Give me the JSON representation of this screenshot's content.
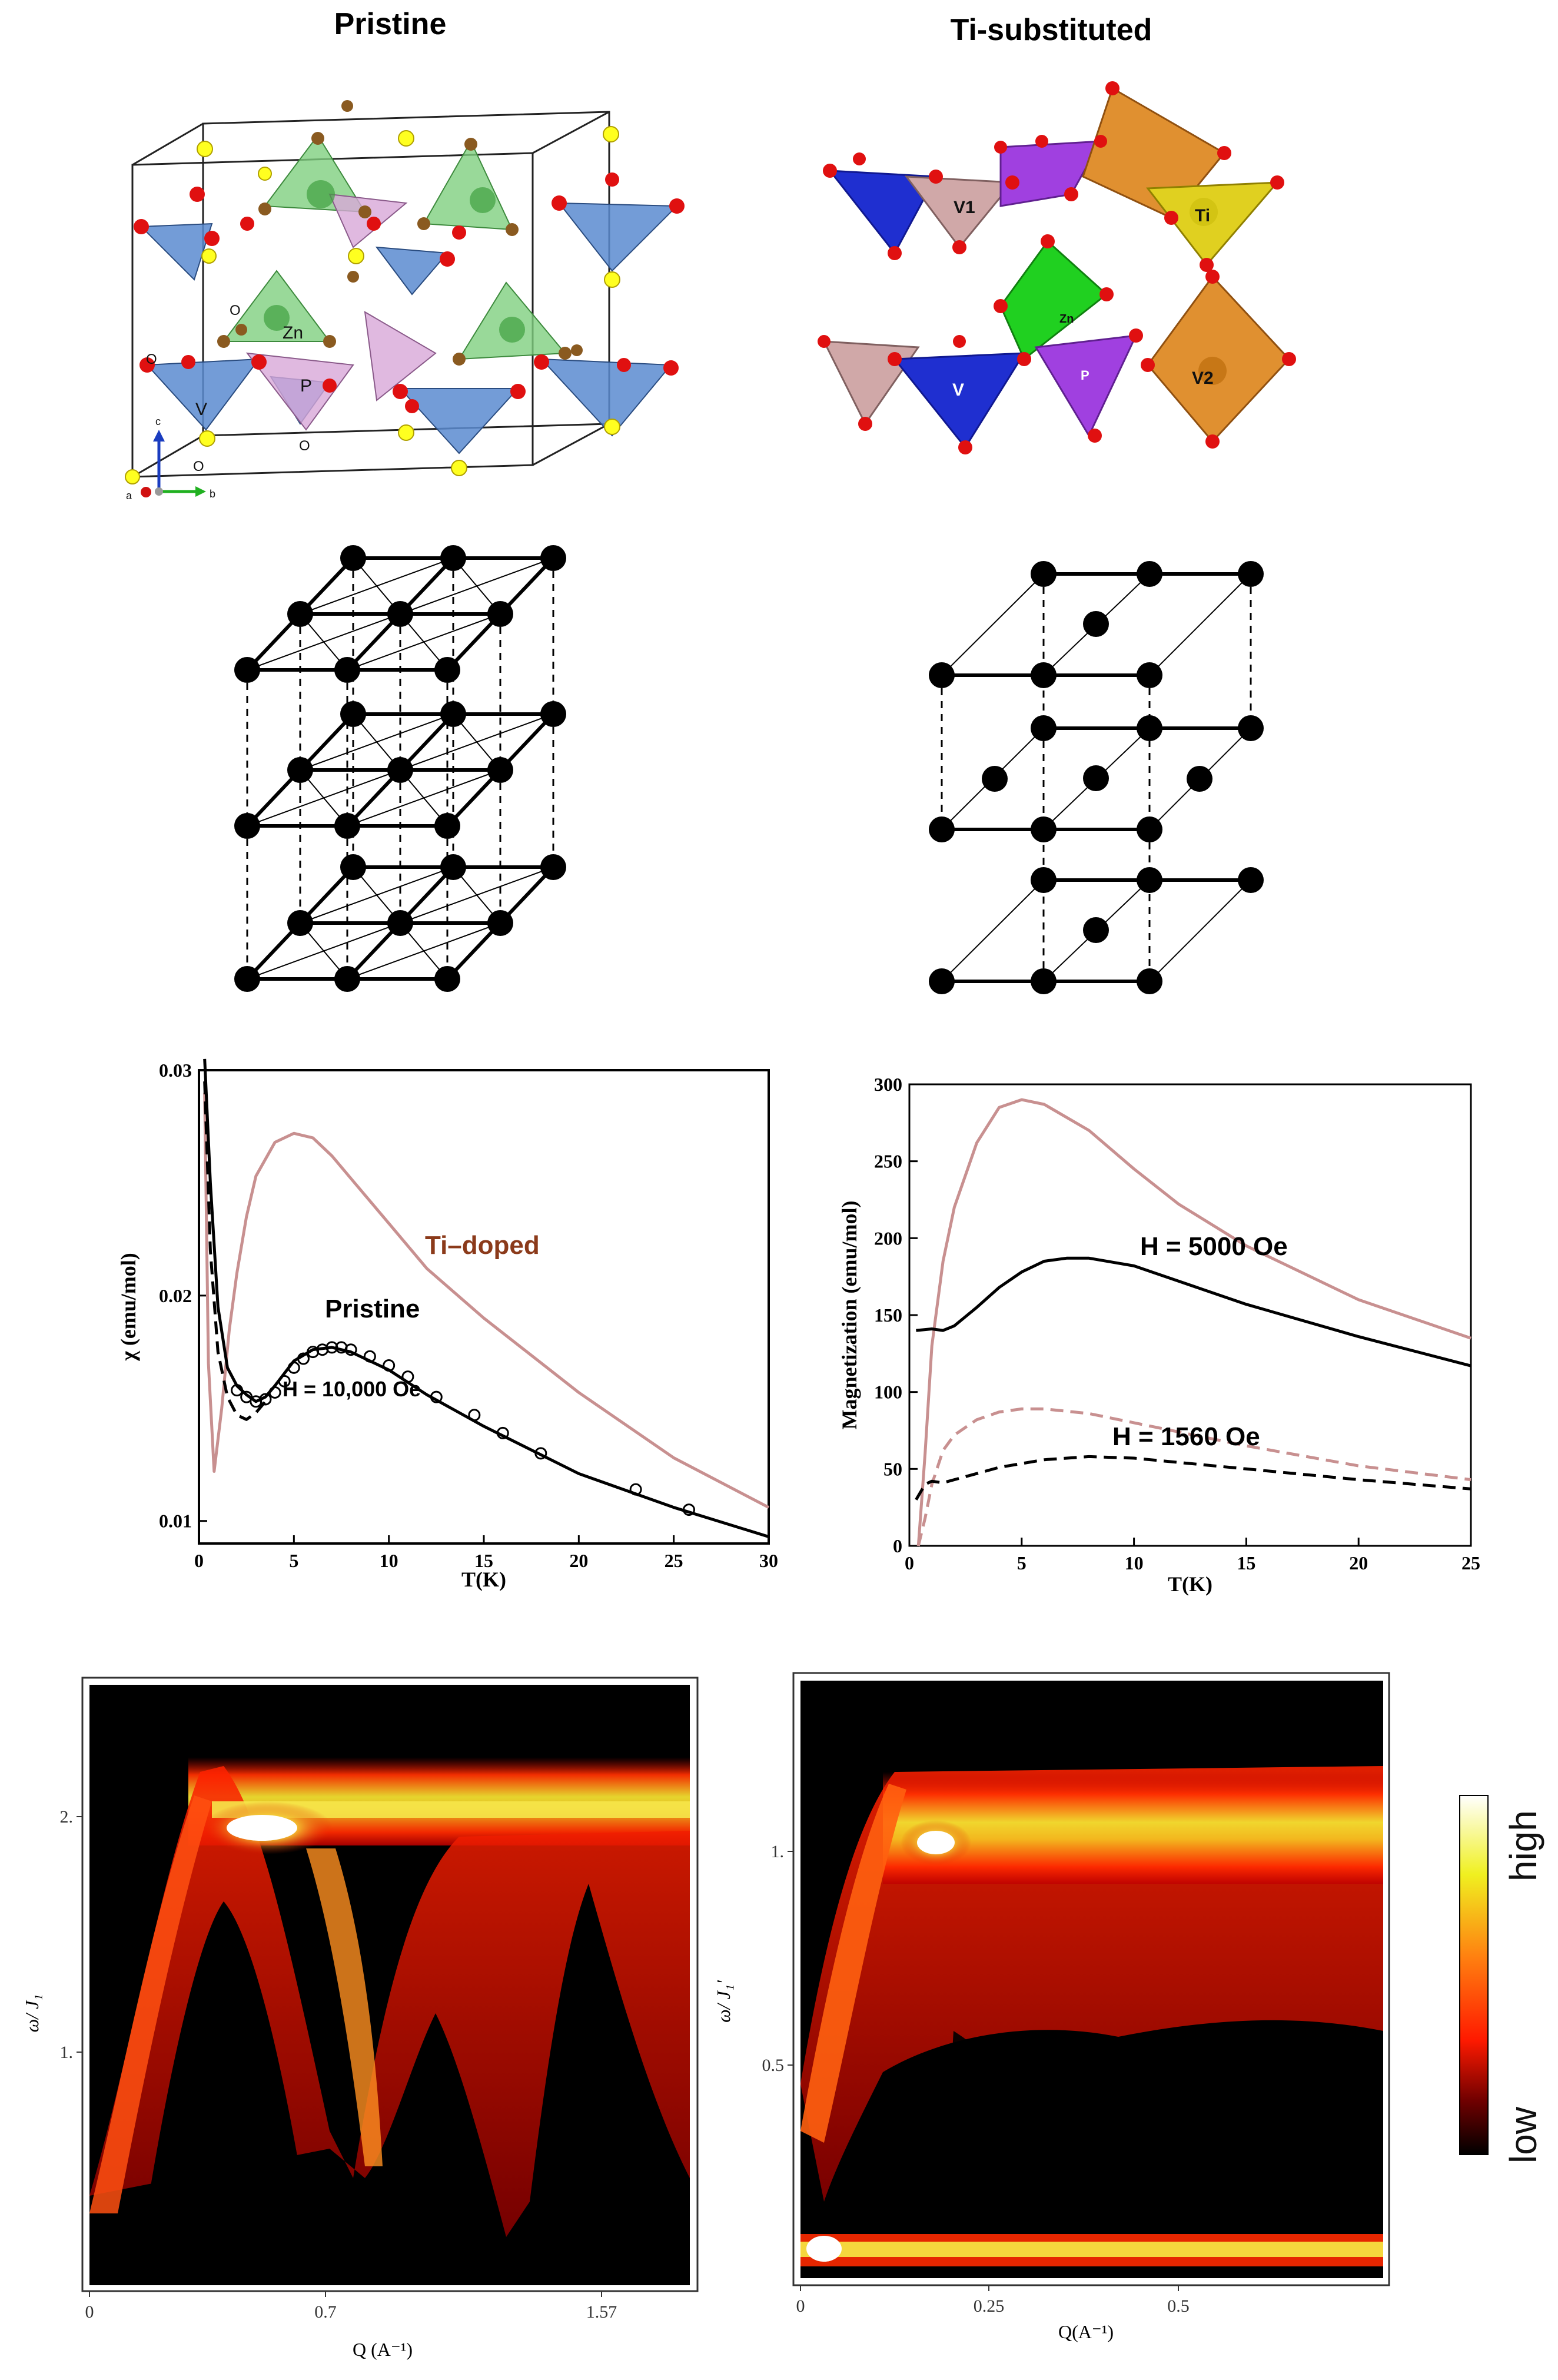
{
  "headers": {
    "left": "Pristine",
    "right": "Ti-substituted"
  },
  "structure_labels": {
    "pristine": [
      "Zn",
      "P",
      "V",
      "O",
      "O",
      "O",
      "O"
    ],
    "axes": [
      "a",
      "b",
      "c"
    ],
    "ti": [
      "V1",
      "Ti",
      "Zn",
      "V",
      "P",
      "V2"
    ]
  },
  "colors": {
    "vanadium": "#5b8bd0",
    "zinc": "#7fd07f",
    "phosphorus": "#d8a8d8",
    "oxygen": "#e01010",
    "sulfur": "#ffff20",
    "titanium": "#e0c020",
    "v2": "#d08820",
    "ti_doped": "#c89090"
  },
  "chart_data": [
    {
      "type": "line",
      "id": "chi_vs_T",
      "xlabel": "T(K)",
      "ylabel": "χ (emu/mol)",
      "xlim": [
        0,
        30
      ],
      "ylim": [
        0.009,
        0.03
      ],
      "xticks": [
        "0",
        "5",
        "10",
        "15",
        "20",
        "25",
        "30"
      ],
      "yticks": [
        "0.01",
        "0.02",
        "0.03"
      ],
      "annotations": [
        "Ti–doped",
        "Pristine",
        "H = 10,000 Oe"
      ],
      "series": [
        {
          "name": "Ti–doped",
          "style": "solid",
          "color": "#c89090",
          "x": [
            0.3,
            0.5,
            0.8,
            1.2,
            1.6,
            2.0,
            2.5,
            3.0,
            4.0,
            5.0,
            6.0,
            7.0,
            8.0,
            10.0,
            12.0,
            15.0,
            20.0,
            25.0,
            30.0
          ],
          "y": [
            0.029,
            0.017,
            0.0122,
            0.015,
            0.0185,
            0.021,
            0.0235,
            0.0253,
            0.0268,
            0.0272,
            0.027,
            0.0262,
            0.0252,
            0.0232,
            0.0212,
            0.019,
            0.0157,
            0.0128,
            0.0106
          ]
        },
        {
          "name": "Pristine",
          "style": "solid",
          "color": "#000000",
          "x": [
            0.3,
            0.6,
            1.0,
            1.5,
            2.0,
            2.5,
            3.0,
            3.5,
            4.0,
            5.0,
            6.0,
            7.0,
            8.0,
            10.0,
            12.0,
            15.0,
            20.0,
            25.0,
            30.0
          ],
          "y": [
            0.0305,
            0.025,
            0.0195,
            0.0168,
            0.016,
            0.0156,
            0.0153,
            0.0155,
            0.016,
            0.0171,
            0.0176,
            0.0177,
            0.0175,
            0.0167,
            0.0156,
            0.0142,
            0.0121,
            0.0106,
            0.0093
          ]
        },
        {
          "name": "H = 10,000 Oe",
          "style": "dashed",
          "color": "#000000",
          "x": [
            0.3,
            0.6,
            1.0,
            1.5,
            2.0,
            2.5,
            3.0,
            3.5
          ],
          "y": [
            0.0295,
            0.022,
            0.0175,
            0.0155,
            0.0147,
            0.0145,
            0.0148,
            0.0153
          ]
        },
        {
          "name": "data",
          "style": "circles",
          "color": "#000000",
          "x": [
            2.0,
            2.5,
            3.0,
            3.5,
            4.0,
            4.5,
            5.0,
            5.5,
            6.0,
            6.5,
            7.0,
            7.5,
            8.0,
            9.0,
            10.0,
            11.0,
            12.5,
            14.5,
            16.0,
            18.0,
            23.0,
            25.8
          ],
          "y": [
            0.0158,
            0.0155,
            0.0153,
            0.0154,
            0.0157,
            0.0162,
            0.0168,
            0.0172,
            0.0175,
            0.0176,
            0.0177,
            0.0177,
            0.0176,
            0.0173,
            0.0169,
            0.0164,
            0.0155,
            0.0147,
            0.0139,
            0.013,
            0.0114,
            0.0105
          ]
        }
      ]
    },
    {
      "type": "line",
      "id": "magnetization_vs_T",
      "xlabel": "T(K)",
      "ylabel": "Magnetization (emu/mol)",
      "xlim": [
        0,
        25
      ],
      "ylim": [
        0,
        300
      ],
      "xticks": [
        "0",
        "5",
        "10",
        "15",
        "20",
        "25"
      ],
      "yticks": [
        "0",
        "50",
        "100",
        "150",
        "200",
        "250",
        "300"
      ],
      "annotations": [
        "H = 5000 Oe",
        "H = 1560 Oe"
      ],
      "series": [
        {
          "name": "Ti-doped 5000 Oe",
          "style": "solid",
          "color": "#c89090",
          "x": [
            0.4,
            0.7,
            1.0,
            1.5,
            2.0,
            3.0,
            4.0,
            5.0,
            6.0,
            8.0,
            10.0,
            12.0,
            15.0,
            20.0,
            25.0
          ],
          "y": [
            0,
            60,
            130,
            185,
            220,
            262,
            285,
            290,
            287,
            270,
            245,
            222,
            195,
            160,
            135
          ]
        },
        {
          "name": "Pristine 5000 Oe",
          "style": "solid",
          "color": "#000000",
          "x": [
            0.3,
            1.0,
            1.5,
            2.0,
            3.0,
            4.0,
            5.0,
            6.0,
            7.0,
            8.0,
            10.0,
            12.0,
            15.0,
            20.0,
            25.0
          ],
          "y": [
            140,
            141,
            140,
            143,
            155,
            168,
            178,
            185,
            187,
            187,
            182,
            172,
            157,
            136,
            117
          ]
        },
        {
          "name": "Ti-doped 1560 Oe",
          "style": "dashed",
          "color": "#c89090",
          "x": [
            0.4,
            0.7,
            1.0,
            1.5,
            2.0,
            3.0,
            4.0,
            5.0,
            6.0,
            8.0,
            10.0,
            15.0,
            20.0,
            25.0
          ],
          "y": [
            0,
            18,
            40,
            62,
            72,
            82,
            87,
            89,
            89,
            86,
            80,
            65,
            52,
            43
          ]
        },
        {
          "name": "Pristine 1560 Oe",
          "style": "dashed",
          "color": "#000000",
          "x": [
            0.3,
            0.7,
            1.0,
            1.5,
            2.0,
            3.0,
            4.0,
            6.0,
            8.0,
            10.0,
            15.0,
            20.0,
            25.0
          ],
          "y": [
            30,
            40,
            42,
            41,
            43,
            47,
            51,
            56,
            58,
            57,
            50,
            43,
            37
          ]
        }
      ]
    },
    {
      "type": "heatmap",
      "id": "spectrum_pristine",
      "xlabel": "Q (A⁻¹)",
      "ylabel": "ω/ J₁",
      "xticks": [
        "0",
        "0.7",
        "1.57"
      ],
      "yticks": [
        "1.",
        "2."
      ]
    },
    {
      "type": "heatmap",
      "id": "spectrum_ti",
      "xlabel": "Q(A⁻¹)",
      "ylabel": "ω/ J₁'",
      "xticks": [
        "0",
        "0.25",
        "0.5"
      ],
      "yticks": [
        "0.5",
        "1."
      ],
      "colorbar": {
        "top": "high",
        "bottom": "low"
      }
    }
  ]
}
